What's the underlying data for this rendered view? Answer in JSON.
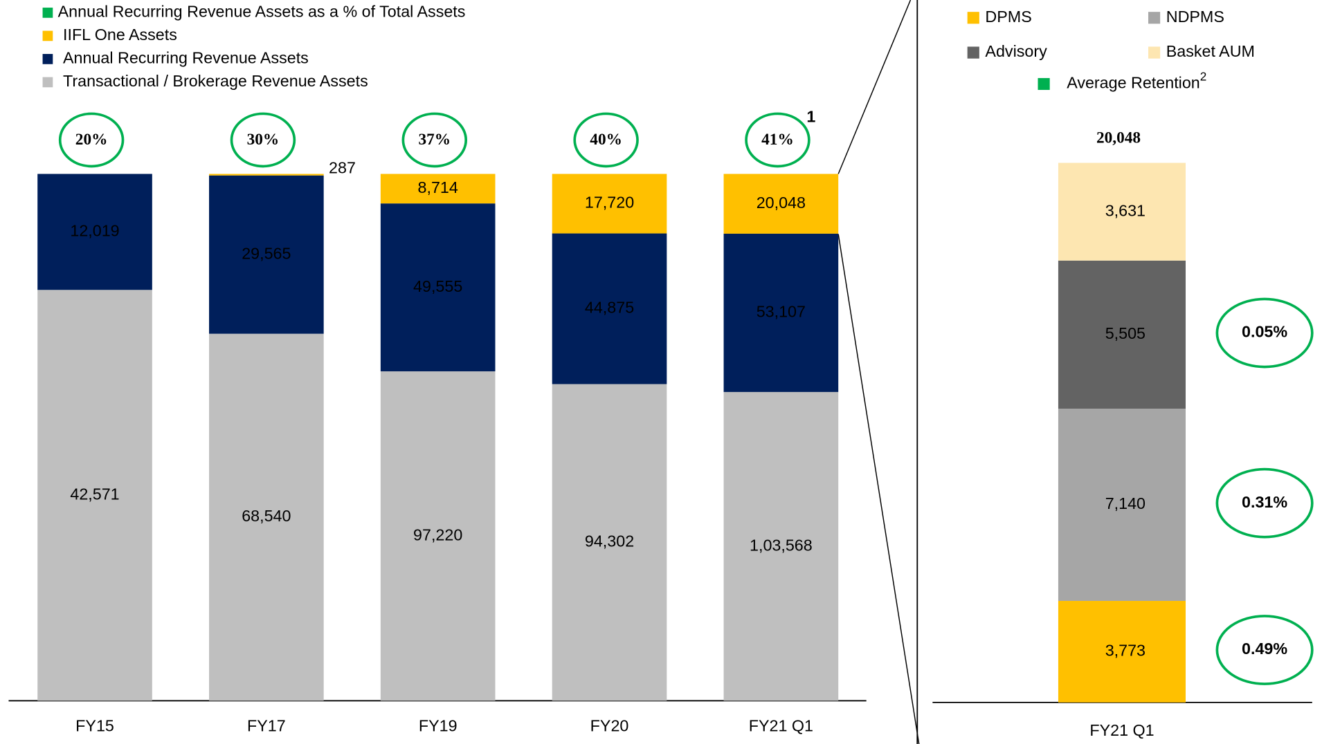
{
  "chart_data": [
    {
      "type": "stacked_bar_100",
      "categories": [
        "FY15",
        "FY17",
        "FY19",
        "FY20",
        "FY21 Q1"
      ],
      "series": [
        {
          "name": "Transactional  / Brokerage Revenue Assets",
          "color": "#bfbfbf",
          "values": [
            42571,
            68540,
            97220,
            94302,
            103568
          ],
          "value_labels": [
            "42,571",
            "68,540",
            "97,220",
            "94,302",
            "1,03,568"
          ]
        },
        {
          "name": "Annual Recurring Revenue Assets",
          "color": "#001f5b",
          "values": [
            12019,
            29565,
            49555,
            44875,
            53107
          ],
          "value_labels": [
            "12,019",
            "29,565",
            "49,555",
            "44,875",
            "53,107"
          ]
        },
        {
          "name": "IIFL One Assets",
          "color": "#ffc000",
          "values": [
            null,
            287,
            8714,
            17720,
            20048
          ],
          "value_labels": [
            null,
            "287",
            "8,714",
            "17,720",
            "20,048"
          ]
        }
      ],
      "share": {
        "name": "Annual Recurring Revenue Assets as a % of Total Assets",
        "color": "#00b050",
        "values": [
          20,
          30,
          37,
          40,
          41
        ],
        "value_labels": [
          "20%",
          "30%",
          "37%",
          "40%",
          "41%"
        ],
        "footnote": "1"
      }
    },
    {
      "type": "stacked_bar",
      "categories": [
        "FY21 Q1"
      ],
      "total": 20048,
      "total_label": "20,048",
      "series": [
        {
          "name": "DPMS",
          "color": "#ffc000",
          "values": [
            3773
          ],
          "value_labels": [
            "3,773"
          ]
        },
        {
          "name": "NDPMS",
          "color": "#a6a6a6",
          "values": [
            7140
          ],
          "value_labels": [
            "7,140"
          ]
        },
        {
          "name": "Advisory",
          "color": "#636363",
          "values": [
            5505
          ],
          "value_labels": [
            "5,505"
          ]
        },
        {
          "name": "Basket AUM",
          "color": "#fde6b1",
          "values": [
            3631
          ],
          "value_labels": [
            "3,631"
          ]
        }
      ],
      "retention": {
        "name": "Average Retention",
        "footnote": "2",
        "color": "#00b050",
        "values": [
          0.49,
          0.31,
          0.05,
          null
        ],
        "value_labels": [
          "0.49%",
          "0.31%",
          "0.05%",
          null
        ]
      }
    }
  ]
}
